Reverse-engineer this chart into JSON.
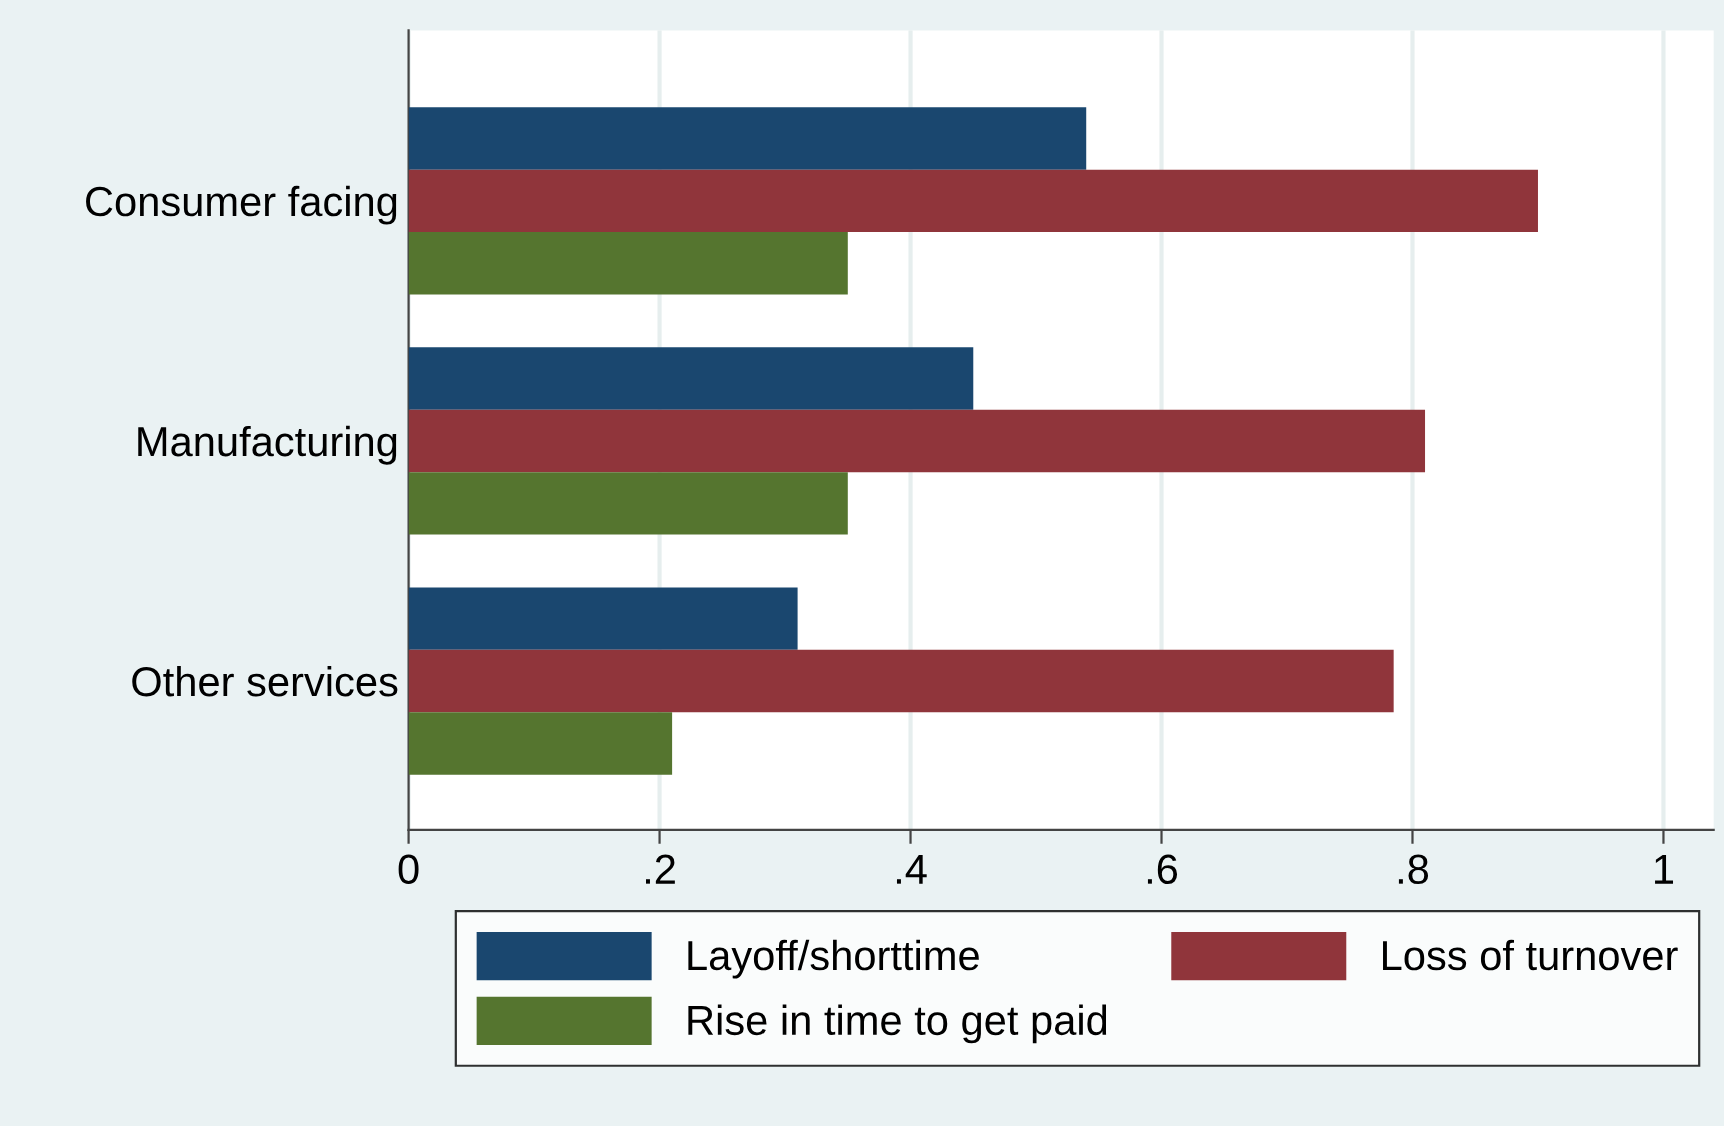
{
  "chart_data": {
    "type": "bar",
    "orientation": "horizontal",
    "categories": [
      "Consumer facing",
      "Manufacturing",
      "Other services"
    ],
    "series": [
      {
        "name": "Layoff/shorttime",
        "color": "#1a476f",
        "values": [
          0.54,
          0.45,
          0.31
        ]
      },
      {
        "name": "Loss of turnover",
        "color": "#90353b",
        "values": [
          0.9,
          0.81,
          0.785
        ]
      },
      {
        "name": "Rise in time to get paid",
        "color": "#55752f",
        "values": [
          0.35,
          0.35,
          0.21
        ]
      }
    ],
    "xlim": [
      0,
      1.04
    ],
    "xticks": [
      0,
      {
        "value": 0.2,
        "label": ".2"
      },
      {
        "value": 0.4,
        "label": ".4"
      },
      {
        "value": 0.6,
        "label": ".6"
      },
      {
        "value": 0.8,
        "label": ".8"
      },
      1
    ],
    "grid": "x",
    "legend": "bottom"
  }
}
